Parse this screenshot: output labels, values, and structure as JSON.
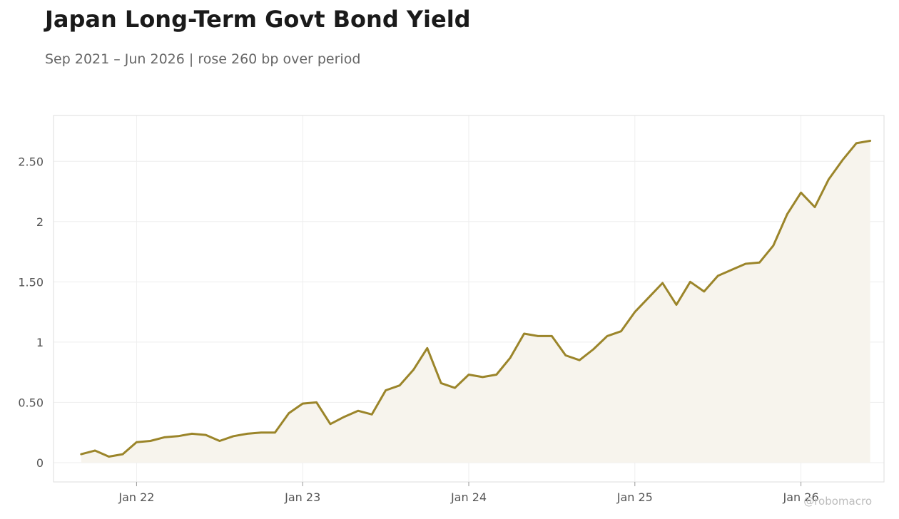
{
  "header": {
    "title": "Japan Long-Term Govt Bond Yield",
    "subtitle": "Sep 2021 – Jun 2026 | rose 260 bp over period"
  },
  "watermark": "@robomacro",
  "colors": {
    "line": "#9b852a",
    "area": "#f7f4ed",
    "grid": "#eeeeee",
    "frame": "#dddddd",
    "tick_text": "#555555"
  },
  "chart_data": {
    "type": "area",
    "title": "Japan Long-Term Govt Bond Yield",
    "subtitle": "Sep 2021 – Jun 2026 | rose 260 bp over period",
    "xlabel": "",
    "ylabel": "",
    "x": [
      "2021-09",
      "2021-10",
      "2021-11",
      "2021-12",
      "2022-01",
      "2022-02",
      "2022-03",
      "2022-04",
      "2022-05",
      "2022-06",
      "2022-07",
      "2022-08",
      "2022-09",
      "2022-10",
      "2022-11",
      "2022-12",
      "2023-01",
      "2023-02",
      "2023-03",
      "2023-04",
      "2023-05",
      "2023-06",
      "2023-07",
      "2023-08",
      "2023-09",
      "2023-10",
      "2023-11",
      "2023-12",
      "2024-01",
      "2024-02",
      "2024-03",
      "2024-04",
      "2024-05",
      "2024-06",
      "2024-07",
      "2024-08",
      "2024-09",
      "2024-10",
      "2024-11",
      "2024-12",
      "2025-01",
      "2025-02",
      "2025-03",
      "2025-04",
      "2025-05",
      "2025-06",
      "2025-07",
      "2025-08",
      "2025-09",
      "2025-10",
      "2025-11",
      "2025-12",
      "2026-01",
      "2026-02",
      "2026-03",
      "2026-04",
      "2026-05",
      "2026-06"
    ],
    "series": [
      {
        "values": [
          0.07,
          0.1,
          0.05,
          0.07,
          0.17,
          0.18,
          0.21,
          0.22,
          0.24,
          0.23,
          0.18,
          0.22,
          0.24,
          0.25,
          0.25,
          0.41,
          0.49,
          0.5,
          0.32,
          0.38,
          0.43,
          0.4,
          0.6,
          0.64,
          0.77,
          0.95,
          0.66,
          0.62,
          0.73,
          0.71,
          0.73,
          0.87,
          1.07,
          1.05,
          1.05,
          0.89,
          0.85,
          0.94,
          1.05,
          1.09,
          1.25,
          1.37,
          1.49,
          1.31,
          1.5,
          1.42,
          1.55,
          1.6,
          1.65,
          1.66,
          1.8,
          2.06,
          2.24,
          2.12,
          2.35,
          2.51,
          2.65,
          2.67
        ]
      }
    ],
    "x_ticks": [
      {
        "value": "2022-01",
        "label": "Jan 22"
      },
      {
        "value": "2023-01",
        "label": "Jan 23"
      },
      {
        "value": "2024-01",
        "label": "Jan 24"
      },
      {
        "value": "2025-01",
        "label": "Jan 25"
      },
      {
        "value": "2026-01",
        "label": "Jan 26"
      }
    ],
    "y_ticks": [
      {
        "value": 0,
        "label": "0"
      },
      {
        "value": 0.5,
        "label": "0.50"
      },
      {
        "value": 1,
        "label": "1"
      },
      {
        "value": 1.5,
        "label": "1.50"
      },
      {
        "value": 2,
        "label": "2"
      },
      {
        "value": 2.5,
        "label": "2.50"
      }
    ],
    "xlim": [
      "2021-07",
      "2026-07"
    ],
    "ylim": [
      -0.16,
      2.88
    ],
    "grid": true,
    "legend": "none"
  }
}
